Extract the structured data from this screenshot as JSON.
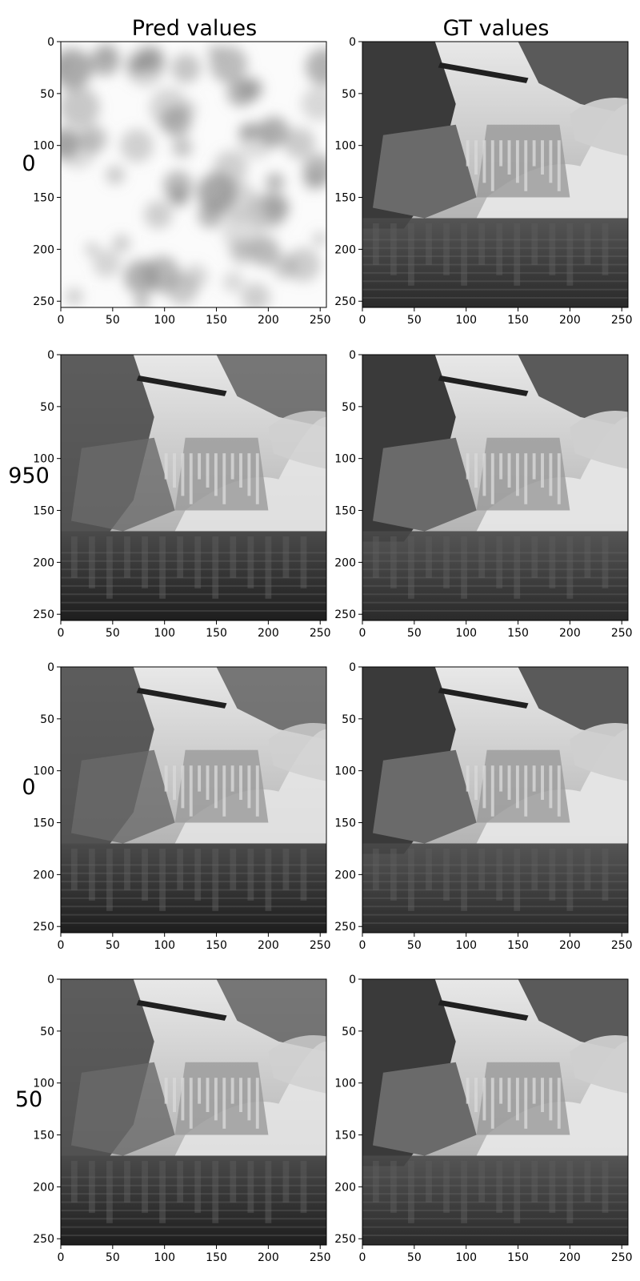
{
  "chart_data": {
    "type": "heatmap",
    "column_titles": [
      "Pred values",
      "GT values"
    ],
    "row_labels": [
      "0",
      "950",
      "0",
      "50"
    ],
    "axis_range": [
      0,
      256
    ],
    "tick_values": [
      0,
      50,
      100,
      150,
      200,
      250
    ],
    "tick_labels": [
      "0",
      "50",
      "100",
      "150",
      "200",
      "250"
    ],
    "colormap": "grayscale",
    "subject": "black-and-white photo of a frozen waterfall with icicles over dark water, bridge in background",
    "panels": [
      {
        "row": 0,
        "column": "Pred values",
        "content": "noise"
      },
      {
        "row": 0,
        "column": "GT values",
        "content": "image"
      },
      {
        "row": 1,
        "column": "Pred values",
        "content": "image-dark"
      },
      {
        "row": 1,
        "column": "GT values",
        "content": "image"
      },
      {
        "row": 2,
        "column": "Pred values",
        "content": "image-dark"
      },
      {
        "row": 2,
        "column": "GT values",
        "content": "image"
      },
      {
        "row": 3,
        "column": "Pred values",
        "content": "image-dark"
      },
      {
        "row": 3,
        "column": "GT values",
        "content": "image"
      }
    ]
  },
  "colors": {
    "background": "#ffffff",
    "axes": "#000000",
    "sky": "#dcdcdc",
    "forest": "#3a3a3a",
    "snow": "#e6e6e6",
    "rock": "#6a6a6a",
    "water": "#2c2c2c",
    "noise_bg": "#fbfbfb",
    "noise_blob": "#8a8a8a"
  }
}
